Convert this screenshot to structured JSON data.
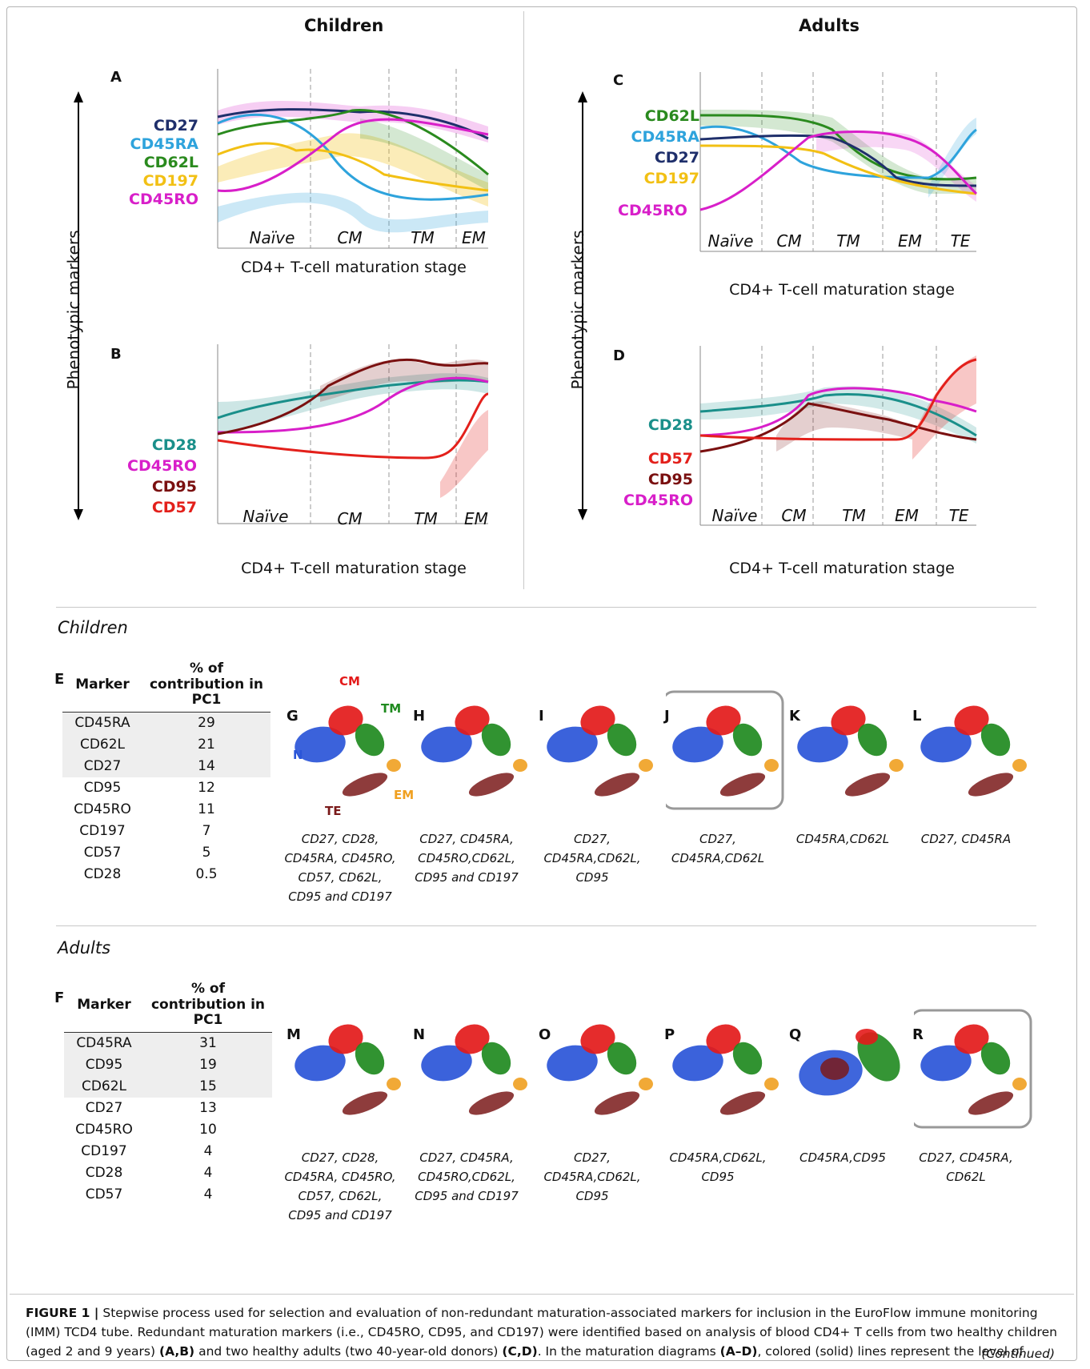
{
  "headers": {
    "children": "Children",
    "adults": "Adults"
  },
  "axis_vertical": "Phenotypic markers",
  "x_axis_title": "CD4+ T-cell maturation stage",
  "panels": {
    "A": {
      "letter": "A",
      "stages": [
        "Naïve",
        "CM",
        "TM",
        "EM"
      ],
      "markers": [
        "CD27",
        "CD45RA",
        "CD62L",
        "CD197",
        "CD45RO"
      ]
    },
    "B": {
      "letter": "B",
      "stages": [
        "Naïve",
        "CM",
        "TM",
        "EM"
      ],
      "markers": [
        "CD28",
        "CD45RO",
        "CD95",
        "CD57"
      ]
    },
    "C": {
      "letter": "C",
      "stages": [
        "Naïve",
        "CM",
        "TM",
        "EM",
        "TE"
      ],
      "markers": [
        "CD62L",
        "CD45RA",
        "CD27",
        "CD197",
        "CD45RO"
      ]
    },
    "D": {
      "letter": "D",
      "stages": [
        "Naïve",
        "CM",
        "TM",
        "EM",
        "TE"
      ],
      "markers": [
        "CD28",
        "CD57",
        "CD95",
        "CD45RO"
      ]
    }
  },
  "sections": {
    "children": "Children",
    "adults": "Adults"
  },
  "table_E": {
    "letter": "E",
    "col_marker": "Marker",
    "col_contrib": "% of contribution in PC1",
    "rows": [
      {
        "marker": "CD45RA",
        "value": "29"
      },
      {
        "marker": "CD62L",
        "value": "21"
      },
      {
        "marker": "CD27",
        "value": "14"
      },
      {
        "marker": "CD95",
        "value": "12"
      },
      {
        "marker": "CD45RO",
        "value": "11"
      },
      {
        "marker": "CD197",
        "value": "7"
      },
      {
        "marker": "CD57",
        "value": "5"
      },
      {
        "marker": "CD28",
        "value": "0.5"
      }
    ]
  },
  "table_F": {
    "letter": "F",
    "col_marker": "Marker",
    "col_contrib": "% of contribution in PC1",
    "rows": [
      {
        "marker": "CD45RA",
        "value": "31"
      },
      {
        "marker": "CD95",
        "value": "19"
      },
      {
        "marker": "CD62L",
        "value": "15"
      },
      {
        "marker": "CD27",
        "value": "13"
      },
      {
        "marker": "CD45RO",
        "value": "10"
      },
      {
        "marker": "CD197",
        "value": "4"
      },
      {
        "marker": "CD28",
        "value": "4"
      },
      {
        "marker": "CD57",
        "value": "4"
      }
    ]
  },
  "population_labels": {
    "cm": "CM",
    "tm": "TM",
    "n": "N",
    "em": "EM",
    "te": "TE"
  },
  "pca_children": [
    {
      "letter": "G",
      "caption": [
        "CD27, CD28,",
        "CD45RA, CD45RO,",
        "CD57, CD62L,",
        "CD95 and CD197"
      ]
    },
    {
      "letter": "H",
      "caption": [
        "CD27, CD45RA,",
        "CD45RO,CD62L,",
        "CD95 and CD197"
      ]
    },
    {
      "letter": "I",
      "caption": [
        "CD27,",
        "CD45RA,CD62L,",
        "CD95"
      ]
    },
    {
      "letter": "J",
      "caption": [
        "CD27,",
        "CD45RA,CD62L"
      ]
    },
    {
      "letter": "K",
      "caption": [
        "CD45RA,CD62L"
      ]
    },
    {
      "letter": "L",
      "caption": [
        "CD27, CD45RA"
      ]
    }
  ],
  "pca_adults": [
    {
      "letter": "M",
      "caption": [
        "CD27, CD28,",
        "CD45RA, CD45RO,",
        "CD57, CD62L,",
        "CD95 and CD197"
      ]
    },
    {
      "letter": "N",
      "caption": [
        "CD27, CD45RA,",
        "CD45RO,CD62L,",
        "CD95 and CD197"
      ]
    },
    {
      "letter": "O",
      "caption": [
        "CD27,",
        "CD45RA,CD62L,",
        "CD95"
      ]
    },
    {
      "letter": "P",
      "caption": [
        "CD45RA,CD62L,",
        "CD95"
      ]
    },
    {
      "letter": "Q",
      "caption": [
        "CD45RA,CD95"
      ]
    },
    {
      "letter": "R",
      "caption": [
        "CD27, CD45RA,",
        "CD62L"
      ]
    }
  ],
  "caption": {
    "prefix": "FIGURE 1 |",
    "body": " Stepwise process used for selection and evaluation of non-redundant maturation-associated markers for inclusion in the EuroFlow immune monitoring (IMM) TCD4 tube. Redundant maturation markers (i.e., CD45RO, CD95, and CD197) were identified based on analysis of blood CD4+ T cells from two healthy children (aged 2 and 9 years) ",
    "ref1": "(A,B)",
    "mid": " and two healthy adults (two 40-year-old donors) ",
    "ref2": "(C,D)",
    "mid2": ". In the maturation diagrams ",
    "ref3": "(A–D)",
    "end": ", colored (solid) lines represent the level of",
    "continued": "(Continued)"
  },
  "colors": {
    "CD27": "#1f2f6b",
    "CD45RA": "#2ea3dc",
    "CD62L": "#2a8a1e",
    "CD197": "#f2c014",
    "CD45RO": "#d81fc9",
    "CD28": "#1a8f8a",
    "CD95": "#7a1010",
    "CD57": "#e3201b",
    "naive": "#2a55d8",
    "cm": "#e31a1a",
    "tm": "#1f8a1f",
    "em": "#f0a020",
    "te": "#7a1a1a"
  }
}
